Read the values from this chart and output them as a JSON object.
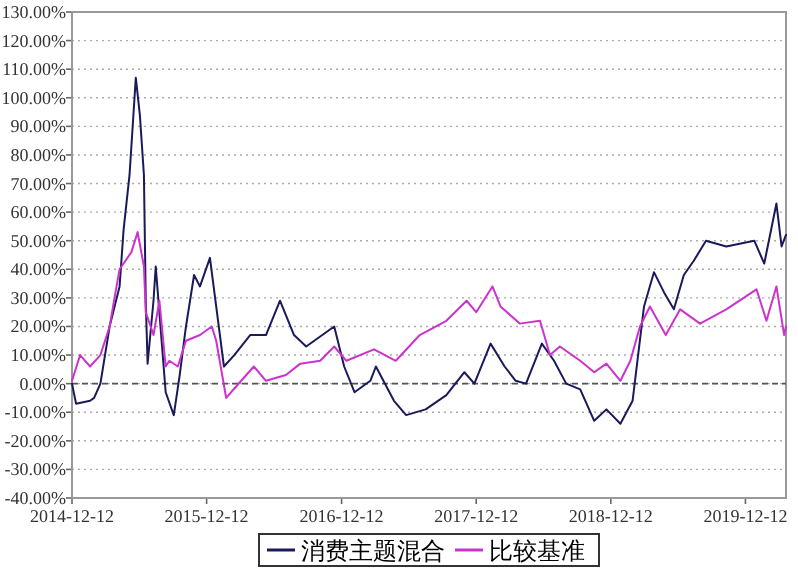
{
  "chart_data": {
    "type": "line",
    "xlim": [
      "2014-12-12",
      "2020-03-31"
    ],
    "xticks": [
      {
        "value": "2014-12-12",
        "label": "2014-12-12"
      },
      {
        "value": "2015-12-12",
        "label": "2015-12-12"
      },
      {
        "value": "2016-12-12",
        "label": "2016-12-12"
      },
      {
        "value": "2017-12-12",
        "label": "2017-12-12"
      },
      {
        "value": "2018-12-12",
        "label": "2018-12-12"
      },
      {
        "value": "2019-12-12",
        "label": "2019-12-12"
      }
    ],
    "ylim": [
      -40,
      130
    ],
    "yticks": [
      {
        "value": -40,
        "label": "-40.00%"
      },
      {
        "value": -30,
        "label": "-30.00%"
      },
      {
        "value": -20,
        "label": "-20.00%"
      },
      {
        "value": -10,
        "label": "-10.00%"
      },
      {
        "value": 0,
        "label": "0.00%"
      },
      {
        "value": 10,
        "label": "10.00%"
      },
      {
        "value": 20,
        "label": "20.00%"
      },
      {
        "value": 30,
        "label": "30.00%"
      },
      {
        "value": 40,
        "label": "40.00%"
      },
      {
        "value": 50,
        "label": "50.00%"
      },
      {
        "value": 60,
        "label": "60.00%"
      },
      {
        "value": 70,
        "label": "70.00%"
      },
      {
        "value": 80,
        "label": "80.00%"
      },
      {
        "value": 90,
        "label": "90.00%"
      },
      {
        "value": 100,
        "label": "100.00%"
      },
      {
        "value": 110,
        "label": "110.00%"
      },
      {
        "value": 120,
        "label": "120.00%"
      },
      {
        "value": 130,
        "label": "130.00%"
      }
    ],
    "ref_lines": [
      {
        "axis": "y",
        "value": 0,
        "color": "#555555",
        "line_style": "dashed"
      }
    ],
    "grid": "y",
    "legend": "bottom",
    "marker": "none",
    "line_style": "solid",
    "series": [
      {
        "name": "消费主题混合",
        "color": "#1a1a5a",
        "x": [
          "2014-12-12",
          "2014-12-23",
          "2015-01-30",
          "2015-02-10",
          "2015-02-27",
          "2015-03-24",
          "2015-04-20",
          "2015-05-01",
          "2015-05-17",
          "2015-06-03",
          "2015-06-14",
          "2015-06-25",
          "2015-06-30",
          "2015-07-05",
          "2015-07-21",
          "2015-07-27",
          "2015-08-23",
          "2015-09-14",
          "2015-09-30",
          "2015-10-17",
          "2015-11-08",
          "2015-11-24",
          "2015-12-21",
          "2016-01-07",
          "2016-01-28",
          "2016-02-25",
          "2016-04-08",
          "2016-05-21",
          "2016-06-28",
          "2016-08-05",
          "2016-09-07",
          "2016-11-22",
          "2016-12-19",
          "2017-01-16",
          "2017-02-28",
          "2017-03-15",
          "2017-05-03",
          "2017-06-05",
          "2017-07-28",
          "2017-09-22",
          "2017-11-10",
          "2017-12-07",
          "2018-01-20",
          "2018-02-27",
          "2018-03-29",
          "2018-04-26",
          "2018-06-08",
          "2018-07-11",
          "2018-08-13",
          "2018-09-20",
          "2018-10-28",
          "2018-11-30",
          "2019-01-07",
          "2019-02-09",
          "2019-03-12",
          "2019-04-08",
          "2019-05-05",
          "2019-06-01",
          "2019-06-28",
          "2019-07-25",
          "2019-08-27",
          "2019-10-21",
          "2020-01-05",
          "2020-02-01",
          "2020-03-05",
          "2020-03-19",
          "2020-03-31"
        ],
        "values": [
          0,
          -7,
          -6,
          -5,
          0,
          20,
          34,
          54,
          73,
          107,
          94,
          73,
          29,
          7,
          29,
          41,
          -3,
          -11,
          3,
          20,
          38,
          34,
          44,
          27,
          6,
          10,
          17,
          17,
          29,
          17,
          13,
          20,
          6,
          -3,
          1,
          6,
          -6,
          -11,
          -9,
          -4,
          4,
          0,
          14,
          6,
          1,
          0,
          14,
          8,
          0,
          -2,
          -13,
          -9,
          -14,
          -6,
          27,
          39,
          32,
          26,
          38,
          43,
          50,
          48,
          50,
          42,
          63,
          48,
          52
        ]
      },
      {
        "name": "比较基准",
        "color": "#cc33cc",
        "x": [
          "2014-12-12",
          "2015-01-03",
          "2015-01-30",
          "2015-02-27",
          "2015-03-24",
          "2015-04-09",
          "2015-04-20",
          "2015-05-06",
          "2015-05-22",
          "2015-06-08",
          "2015-06-25",
          "2015-06-30",
          "2015-07-21",
          "2015-08-06",
          "2015-08-23",
          "2015-09-02",
          "2015-09-25",
          "2015-10-17",
          "2015-11-24",
          "2015-12-26",
          "2016-01-07",
          "2016-02-03",
          "2016-03-01",
          "2016-04-18",
          "2016-05-21",
          "2016-07-14",
          "2016-08-22",
          "2016-10-15",
          "2016-11-22",
          "2016-12-25",
          "2017-03-10",
          "2017-05-08",
          "2017-07-12",
          "2017-09-22",
          "2017-11-16",
          "2017-12-12",
          "2018-01-25",
          "2018-02-16",
          "2018-04-09",
          "2018-06-03",
          "2018-06-30",
          "2018-07-27",
          "2018-09-20",
          "2018-10-28",
          "2018-11-30",
          "2019-01-07",
          "2019-02-03",
          "2019-03-01",
          "2019-03-28",
          "2019-05-10",
          "2019-06-18",
          "2019-08-11",
          "2019-10-21",
          "2020-01-11",
          "2020-02-07",
          "2020-03-05",
          "2020-03-26",
          "2020-03-31"
        ],
        "values": [
          1,
          10,
          6,
          10,
          20,
          32,
          40,
          43,
          46,
          53,
          41,
          25,
          17,
          29,
          6,
          8,
          6,
          15,
          17,
          20,
          15,
          -5,
          -1,
          6,
          1,
          3,
          7,
          8,
          13,
          8,
          12,
          8,
          17,
          22,
          29,
          25,
          34,
          27,
          21,
          22,
          10,
          13,
          8,
          4,
          7,
          1,
          8,
          20,
          27,
          17,
          26,
          21,
          26,
          33,
          22,
          34,
          17,
          20
        ]
      }
    ]
  }
}
